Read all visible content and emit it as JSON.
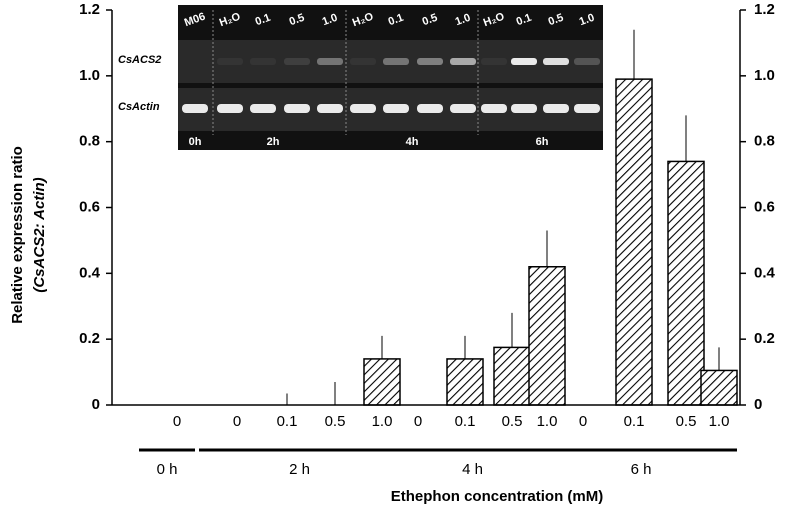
{
  "chart_data": {
    "type": "bar",
    "ylabel": [
      "Relative expression ratio",
      "(CsACS2: Actin)"
    ],
    "xlabel": "Ethephon concentration (mM)",
    "categories": [
      "0",
      "0",
      "0.1",
      "0.5",
      "1.0",
      "0",
      "0.1",
      "0.5",
      "1.0",
      "0",
      "0.1",
      "0.5",
      "1.0"
    ],
    "groups": [
      {
        "label": "0 h",
        "start": 0,
        "end": 0
      },
      {
        "label": "2 h",
        "start": 1,
        "end": 4
      },
      {
        "label": "4 h",
        "start": 5,
        "end": 8
      },
      {
        "label": "6 h",
        "start": 9,
        "end": 12
      }
    ],
    "series": [
      {
        "values": [
          0,
          0,
          0,
          0,
          0.14,
          0,
          0.14,
          0.175,
          0.42,
          0,
          0.99,
          0.74,
          0.105
        ],
        "errors": [
          0,
          0,
          0.035,
          0.07,
          0.07,
          0,
          0.07,
          0.105,
          0.11,
          0,
          0.15,
          0.14,
          0.07
        ],
        "color": "#000000"
      }
    ],
    "ylim": [
      0,
      1.2
    ],
    "yticks": [
      0,
      0.2,
      0.4,
      0.6,
      0.8,
      {
        "value": 1.0,
        "label": "1.0"
      },
      1.2
    ],
    "y2lim": [
      0,
      1.2
    ],
    "y2ticks": [
      0,
      0.2,
      0.4,
      0.6,
      0.8,
      {
        "value": 1.0,
        "label": "1.0"
      },
      1.2
    ],
    "hatch": true
  },
  "inset": {
    "lanes": [
      "M06",
      "H₂O",
      "0.1",
      "0.5",
      "1.0",
      "H₂O",
      "0.1",
      "0.5",
      "1.0",
      "H₂O",
      "0.1",
      "0.5",
      "1.0"
    ],
    "rows": [
      "CsACS2",
      "CsActin"
    ],
    "times": [
      "0h",
      "2h",
      "4h",
      "6h"
    ]
  }
}
